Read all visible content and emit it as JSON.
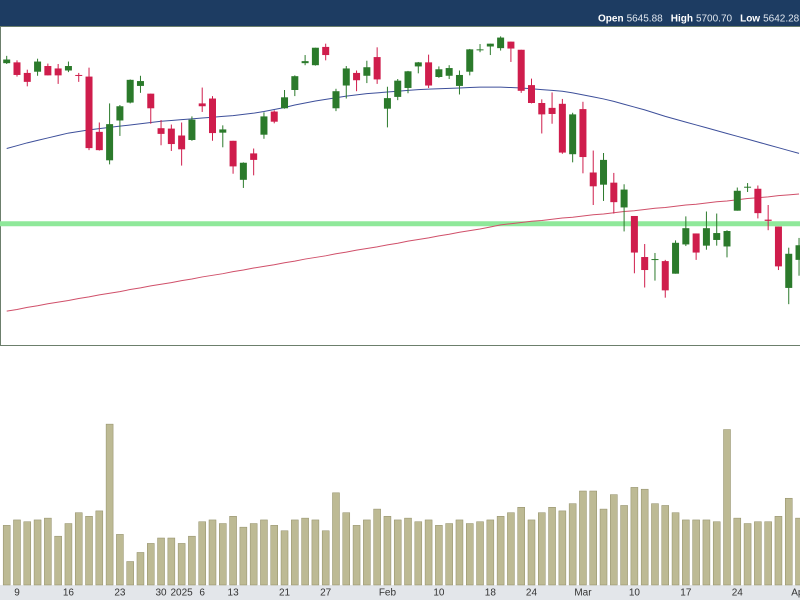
{
  "chart_data": [
    {
      "type": "candlestick",
      "header": [
        {
          "label": "Open",
          "value": "5645.88"
        },
        {
          "label": "High",
          "value": "5700.70"
        },
        {
          "label": "Low",
          "value": "5642.28"
        }
      ],
      "up_color": "#2b7a2b",
      "down_color": "#cf1d4c",
      "ylim": [
        5390,
        6170
      ],
      "open": [
        6081,
        6083,
        6057,
        6060,
        6074,
        6068,
        6063,
        6052,
        6048,
        5912,
        5842,
        5940,
        5984,
        6025,
        6006,
        5921,
        5920,
        5903,
        5892,
        5982,
        5994,
        5910,
        5890,
        5794,
        5859,
        5905,
        5962,
        5970,
        6015,
        6081,
        6076,
        6121,
        5970,
        6026,
        6057,
        6050,
        6096,
        5969,
        5998,
        6020,
        6073,
        6083,
        6047,
        6050,
        6025,
        6060,
        6115,
        6122,
        6118,
        6134,
        6114,
        6027,
        5983,
        5971,
        5981,
        5857,
        5968,
        5812,
        5782,
        5787,
        5726,
        5705,
        5604,
        5599,
        5594,
        5563,
        5635,
        5662,
        5632,
        5646,
        5630,
        5718,
        5775,
        5772,
        5696,
        5679,
        5528,
        5597
      ],
      "high": [
        6099,
        6088,
        6065,
        6092,
        6080,
        6079,
        6085,
        6057,
        6070,
        5935,
        5982,
        5978,
        6041,
        6050,
        6006,
        5941,
        5930,
        5935,
        5950,
        6021,
        6000,
        5928,
        5890,
        5837,
        5871,
        5960,
        5965,
        6015,
        6051,
        6101,
        6119,
        6129,
        6018,
        6074,
        6063,
        6087,
        6120,
        6023,
        6042,
        6062,
        6084,
        6102,
        6073,
        6076,
        6063,
        6116,
        6128,
        6129,
        6147,
        6134,
        6114,
        6043,
        5992,
        6009,
        5993,
        5959,
        5986,
        5866,
        5860,
        5811,
        5783,
        5705,
        5636,
        5614,
        5597,
        5645,
        5704,
        5662,
        5716,
        5711,
        5670,
        5775,
        5786,
        5780,
        5732,
        5679,
        5627,
        5651
      ],
      "low": [
        6079,
        6048,
        6024,
        6050,
        6051,
        6030,
        6059,
        6035,
        5867,
        5866,
        5832,
        5902,
        5982,
        6008,
        5932,
        5879,
        5865,
        5829,
        5890,
        5961,
        5890,
        5874,
        5809,
        5774,
        5805,
        5895,
        5933,
        5969,
        6000,
        6076,
        6075,
        6088,
        5963,
        5994,
        6012,
        6032,
        6030,
        5923,
        5990,
        6007,
        6056,
        6020,
        6045,
        6042,
        6004,
        6051,
        6108,
        6101,
        6112,
        6084,
        6008,
        5982,
        5908,
        5932,
        5858,
        5837,
        5810,
        5732,
        5742,
        5711,
        5667,
        5564,
        5529,
        5546,
        5504,
        5563,
        5631,
        5597,
        5622,
        5632,
        5603,
        5718,
        5764,
        5699,
        5670,
        5572,
        5488,
        5558
      ],
      "close": [
        6090,
        6052,
        6035,
        6085,
        6051,
        6051,
        6074,
        6051,
        5872,
        5867,
        5931,
        5975,
        6040,
        6037,
        5970,
        5907,
        5882,
        5869,
        5942,
        5975,
        5909,
        5918,
        5827,
        5836,
        5843,
        5950,
        5937,
        5997,
        6049,
        6086,
        6119,
        6101,
        6012,
        6068,
        6039,
        6071,
        6041,
        5995,
        6038,
        6061,
        6083,
        6026,
        6066,
        6069,
        6052,
        6115,
        6115,
        6129,
        6144,
        6117,
        6013,
        5983,
        5955,
        5956,
        5861,
        5955,
        5850,
        5778,
        5843,
        5739,
        5770,
        5615,
        5572,
        5599,
        5522,
        5639,
        5675,
        5615,
        5675,
        5663,
        5668,
        5767,
        5777,
        5712,
        5693,
        5581,
        5612,
        5633
      ],
      "series": [
        {
          "color": "#3d4f9a",
          "values": [
            5871,
            5878,
            5885,
            5891,
            5897,
            5903,
            5909,
            5913,
            5917,
            5920,
            5923,
            5926,
            5929,
            5932,
            5935,
            5938,
            5940,
            5942,
            5944,
            5946,
            5948,
            5950,
            5952,
            5955,
            5958,
            5962,
            5967,
            5972,
            5978,
            5983,
            5988,
            5992,
            5996,
            6000,
            6003,
            6006,
            6008,
            6010,
            6012,
            6014,
            6016,
            6017,
            6018,
            6019,
            6020,
            6021,
            6022,
            6022,
            6022,
            6021,
            6020,
            6018,
            6016,
            6014,
            6012,
            6008,
            6003,
            5998,
            5993,
            5987,
            5980,
            5973,
            5966,
            5958,
            5950,
            5943,
            5936,
            5929,
            5922,
            5915,
            5908,
            5901,
            5894,
            5887,
            5880,
            5873,
            5866,
            5859
          ]
        },
        {
          "color": "#d0506a",
          "values": [
            5471,
            5475,
            5480,
            5484,
            5489,
            5493,
            5497,
            5502,
            5506,
            5511,
            5515,
            5519,
            5524,
            5528,
            5533,
            5537,
            5541,
            5546,
            5550,
            5555,
            5559,
            5563,
            5568,
            5572,
            5577,
            5581,
            5585,
            5590,
            5594,
            5599,
            5603,
            5607,
            5612,
            5616,
            5621,
            5625,
            5629,
            5634,
            5638,
            5643,
            5647,
            5651,
            5656,
            5660,
            5665,
            5669,
            5673,
            5678,
            5683,
            5686,
            5689,
            5692,
            5694,
            5697,
            5700,
            5702,
            5705,
            5708,
            5710,
            5713,
            5716,
            5718,
            5721,
            5724,
            5726,
            5729,
            5732,
            5734,
            5737,
            5740,
            5742,
            5745,
            5748,
            5750,
            5752,
            5755,
            5757,
            5759
          ]
        }
      ],
      "hline": {
        "value": 5686,
        "color": "#8fe89a"
      }
    },
    {
      "type": "bar",
      "color": "#bdba94",
      "ylim": [
        0,
        13
      ],
      "categories": [
        null,
        "9",
        null,
        null,
        null,
        null,
        "16",
        null,
        null,
        null,
        null,
        "23",
        null,
        null,
        null,
        "30",
        null,
        "2025",
        null,
        "6",
        null,
        null,
        "13",
        null,
        null,
        null,
        null,
        "21",
        null,
        null,
        null,
        "27",
        null,
        null,
        null,
        null,
        null,
        "Feb",
        null,
        null,
        null,
        null,
        "10",
        null,
        null,
        null,
        null,
        "18",
        null,
        null,
        null,
        "24",
        null,
        null,
        null,
        null,
        "Mar",
        null,
        null,
        null,
        null,
        "10",
        null,
        null,
        null,
        null,
        "17",
        null,
        null,
        null,
        null,
        "24",
        null,
        null,
        null,
        null,
        null,
        "Apr"
      ],
      "values": [
        3.3,
        3.6,
        3.5,
        3.6,
        3.7,
        2.7,
        3.4,
        4.0,
        3.8,
        4.1,
        8.9,
        2.8,
        1.3,
        1.8,
        2.3,
        2.6,
        2.6,
        2.3,
        2.7,
        3.5,
        3.6,
        3.4,
        3.8,
        3.2,
        3.4,
        3.6,
        3.3,
        3.0,
        3.6,
        3.7,
        3.6,
        3.0,
        5.1,
        4.0,
        3.3,
        3.6,
        4.2,
        3.8,
        3.6,
        3.7,
        3.5,
        3.6,
        3.3,
        3.4,
        3.6,
        3.4,
        3.5,
        3.6,
        3.8,
        4.0,
        4.3,
        3.6,
        4.0,
        4.3,
        4.1,
        4.5,
        5.2,
        5.2,
        4.2,
        5.0,
        4.4,
        5.4,
        5.3,
        4.5,
        4.4,
        4.0,
        3.6,
        3.6,
        3.6,
        3.5,
        8.6,
        3.7,
        3.4,
        3.5,
        3.5,
        3.8,
        4.8,
        3.7
      ]
    }
  ]
}
